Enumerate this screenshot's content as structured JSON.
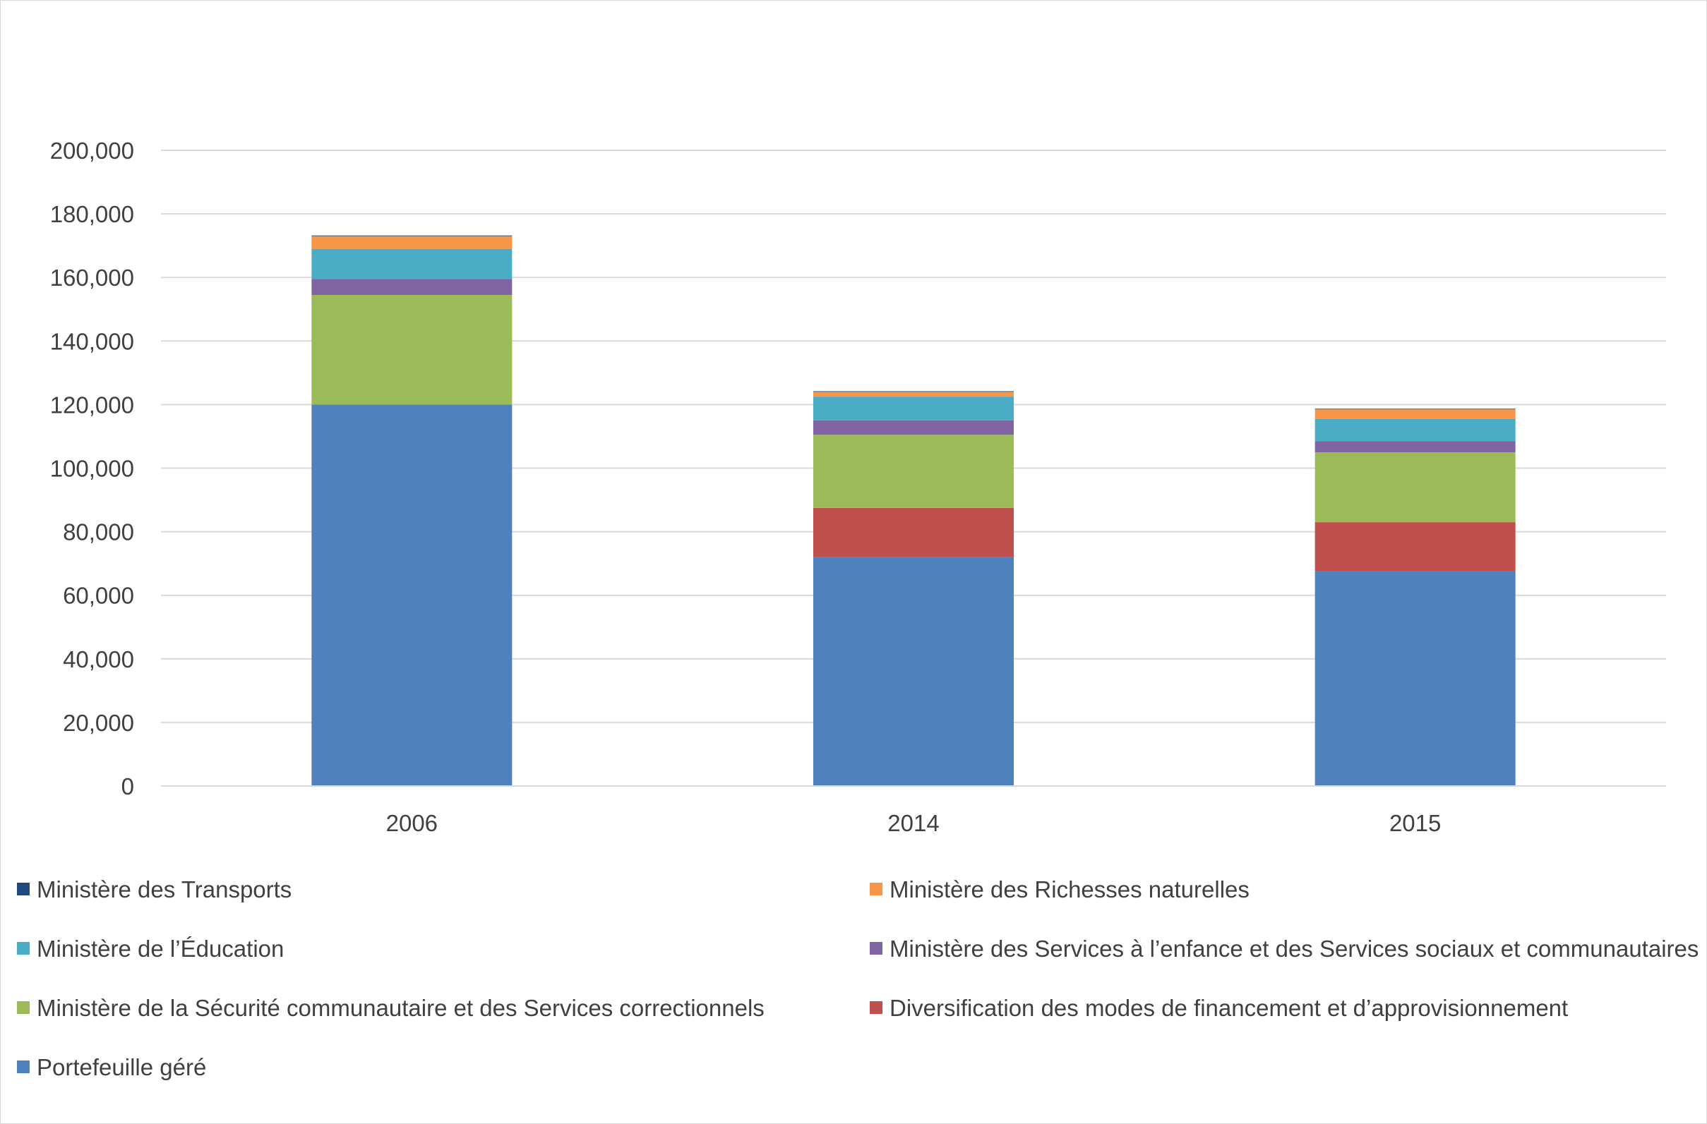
{
  "chart_data": {
    "type": "bar",
    "stacked": true,
    "title": "",
    "xlabel": "",
    "ylabel": "",
    "categories": [
      "2006",
      "2014",
      "2015"
    ],
    "ylim": [
      0,
      200000
    ],
    "yticks": [
      "0",
      "20,000",
      "40,000",
      "60,000",
      "80,000",
      "100,000",
      "120,000",
      "140,000",
      "160,000",
      "180,000",
      "200,000"
    ],
    "grid": true,
    "legend_position": "bottom",
    "series": [
      {
        "name": "Portefeuille géré",
        "color": "#4f81bd",
        "values": [
          120000,
          72000,
          67500
        ]
      },
      {
        "name": "Diversification des modes de financement et d’approvisionnement",
        "color": "#c0504d",
        "values": [
          0,
          15500,
          15500
        ]
      },
      {
        "name": "Ministère de la Sécurité communautaire et des Services correctionnels",
        "color": "#9bbb59",
        "values": [
          34500,
          23000,
          22000
        ]
      },
      {
        "name": "Ministère des Services à l’enfance et des Services sociaux et communautaires",
        "color": "#8064a2",
        "values": [
          5000,
          4500,
          3500
        ]
      },
      {
        "name": "Ministère de l’Éducation",
        "color": "#4bacc6",
        "values": [
          9500,
          7500,
          7000
        ]
      },
      {
        "name": "Ministère des Richesses naturelles",
        "color": "#f79646",
        "values": [
          4000,
          1500,
          3000
        ]
      },
      {
        "name": "Ministère des Transports",
        "color": "#1f497d",
        "values": [
          200,
          200,
          200
        ]
      }
    ],
    "legend_order": [
      "Ministère des Transports",
      "Ministère des Richesses naturelles",
      "Ministère de l’Éducation",
      "Ministère des Services à l’enfance et des Services sociaux et communautaires",
      "Ministère de la Sécurité communautaire et des Services correctionnels",
      "Diversification des modes de financement et d’approvisionnement",
      "Portefeuille géré"
    ]
  }
}
